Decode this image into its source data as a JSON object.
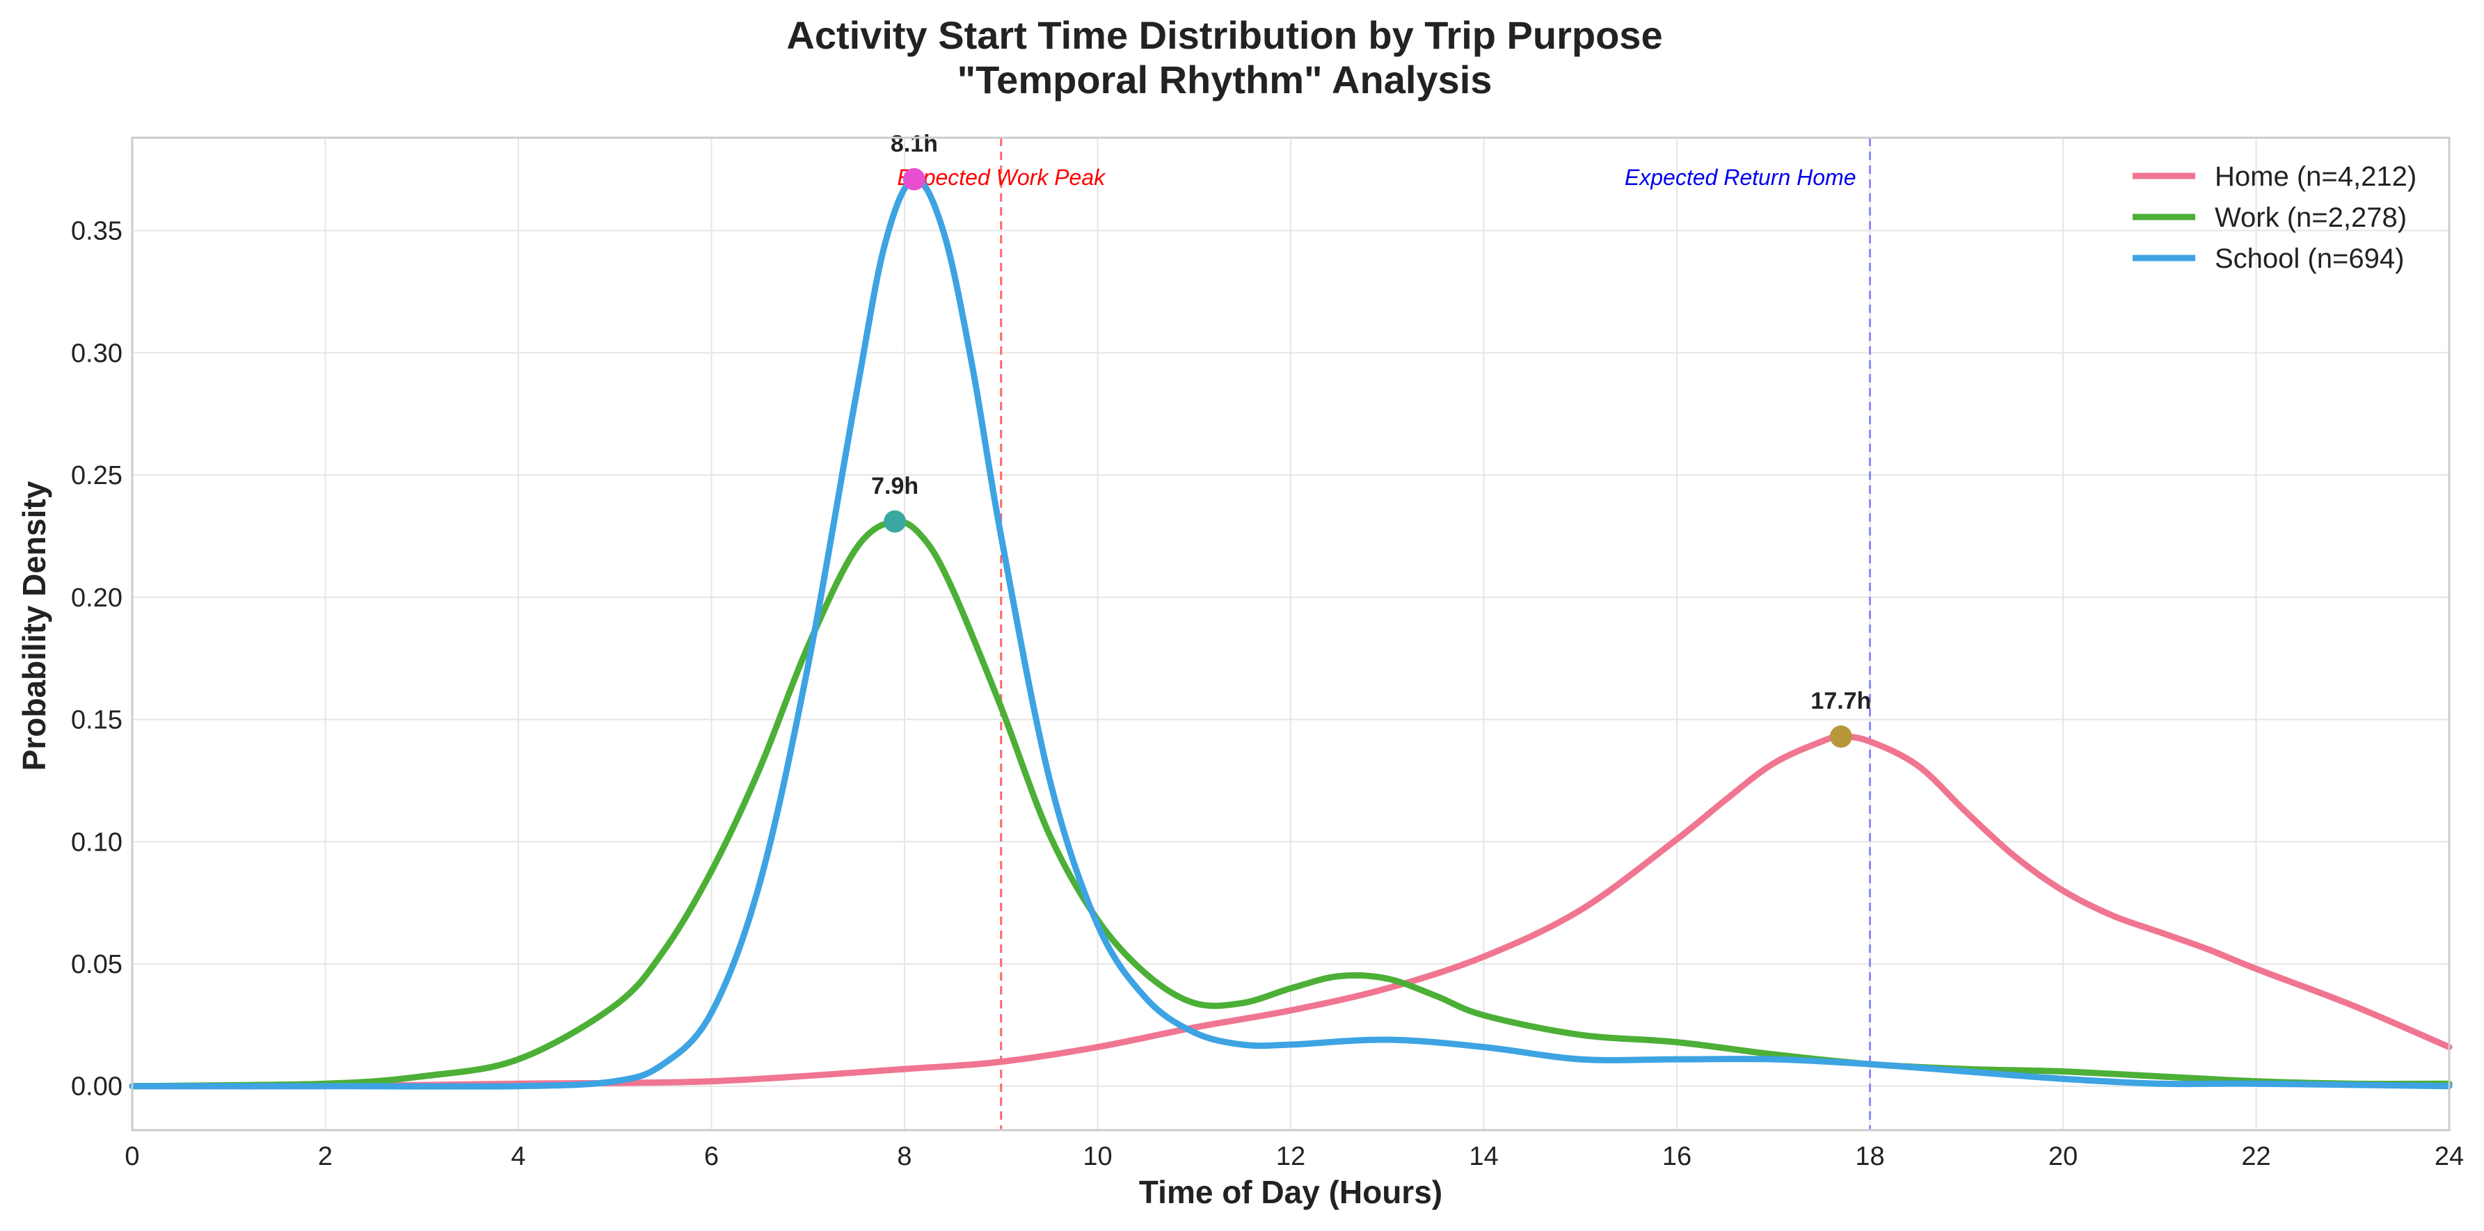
{
  "chart_data": {
    "type": "line",
    "title_line1": "Activity Start Time Distribution by Trip Purpose",
    "title_line2": "\"Temporal Rhythm\" Analysis",
    "xlabel": "Time of Day (Hours)",
    "ylabel": "Probability Density",
    "xlim": [
      0,
      24
    ],
    "ylim": [
      -0.018,
      0.388
    ],
    "xticks": [
      0,
      2,
      4,
      6,
      8,
      10,
      12,
      14,
      16,
      18,
      20,
      22,
      24
    ],
    "yticks": [
      0.0,
      0.05,
      0.1,
      0.15,
      0.2,
      0.25,
      0.3,
      0.35
    ],
    "ytick_labels": [
      "0.00",
      "0.05",
      "0.10",
      "0.15",
      "0.20",
      "0.25",
      "0.30",
      "0.35"
    ],
    "grid": true,
    "legend_position": "top-right",
    "series": [
      {
        "name": "Home (n=4,212)",
        "color": "#f07590",
        "x": [
          0,
          2,
          4,
          6,
          8,
          9,
          10,
          11,
          12,
          13,
          14,
          15,
          16,
          16.5,
          17,
          17.5,
          17.7,
          18,
          18.5,
          19,
          19.5,
          20,
          20.5,
          21,
          21.5,
          22,
          23,
          24
        ],
        "y": [
          0.0,
          0.0,
          0.001,
          0.002,
          0.007,
          0.01,
          0.016,
          0.024,
          0.031,
          0.04,
          0.053,
          0.072,
          0.101,
          0.117,
          0.132,
          0.141,
          0.143,
          0.141,
          0.131,
          0.112,
          0.094,
          0.08,
          0.07,
          0.063,
          0.056,
          0.048,
          0.033,
          0.016
        ],
        "peak": {
          "x": 17.7,
          "y": 0.143,
          "label": "17.7h",
          "marker_color": "#b8973a"
        }
      },
      {
        "name": "Work (n=2,278)",
        "color": "#4caf36",
        "x": [
          0,
          2,
          3,
          4,
          5,
          5.5,
          6,
          6.5,
          7,
          7.5,
          7.9,
          8.2,
          8.5,
          9,
          9.5,
          10,
          10.5,
          11,
          11.5,
          12,
          12.5,
          13,
          13.5,
          14,
          15,
          16,
          17,
          18,
          19,
          20,
          21,
          22,
          23,
          24
        ],
        "y": [
          0.0,
          0.001,
          0.004,
          0.011,
          0.033,
          0.055,
          0.088,
          0.13,
          0.18,
          0.22,
          0.231,
          0.224,
          0.203,
          0.155,
          0.103,
          0.068,
          0.046,
          0.034,
          0.034,
          0.04,
          0.045,
          0.044,
          0.037,
          0.029,
          0.021,
          0.018,
          0.013,
          0.009,
          0.007,
          0.006,
          0.004,
          0.002,
          0.001,
          0.001
        ],
        "peak": {
          "x": 7.9,
          "y": 0.231,
          "label": "7.9h",
          "marker_color": "#3aa8a0"
        }
      },
      {
        "name": "School (n=694)",
        "color": "#3da3e3",
        "x": [
          0,
          2,
          4,
          5,
          5.5,
          6,
          6.5,
          7,
          7.5,
          7.8,
          8.1,
          8.4,
          8.7,
          9,
          9.5,
          10,
          10.5,
          11,
          11.5,
          12,
          13,
          14,
          15,
          16,
          17,
          18,
          19,
          20,
          21,
          22,
          24
        ],
        "y": [
          0.0,
          0.0,
          0.0,
          0.002,
          0.009,
          0.03,
          0.083,
          0.172,
          0.283,
          0.345,
          0.371,
          0.35,
          0.295,
          0.225,
          0.126,
          0.066,
          0.036,
          0.022,
          0.017,
          0.017,
          0.019,
          0.016,
          0.011,
          0.011,
          0.011,
          0.009,
          0.006,
          0.003,
          0.001,
          0.001,
          0.0
        ],
        "peak": {
          "x": 8.1,
          "y": 0.371,
          "label": "8.1h",
          "marker_color": "#e84fd0"
        }
      }
    ],
    "reference_lines": [
      {
        "x": 9,
        "label": "Expected Work Peak",
        "color": "#ff6666",
        "text_color": "#ff0000",
        "label_anchor": "center"
      },
      {
        "x": 18,
        "label": "Expected Return Home",
        "color": "#8a8aff",
        "text_color": "#0000ee",
        "label_anchor": "end"
      }
    ]
  }
}
